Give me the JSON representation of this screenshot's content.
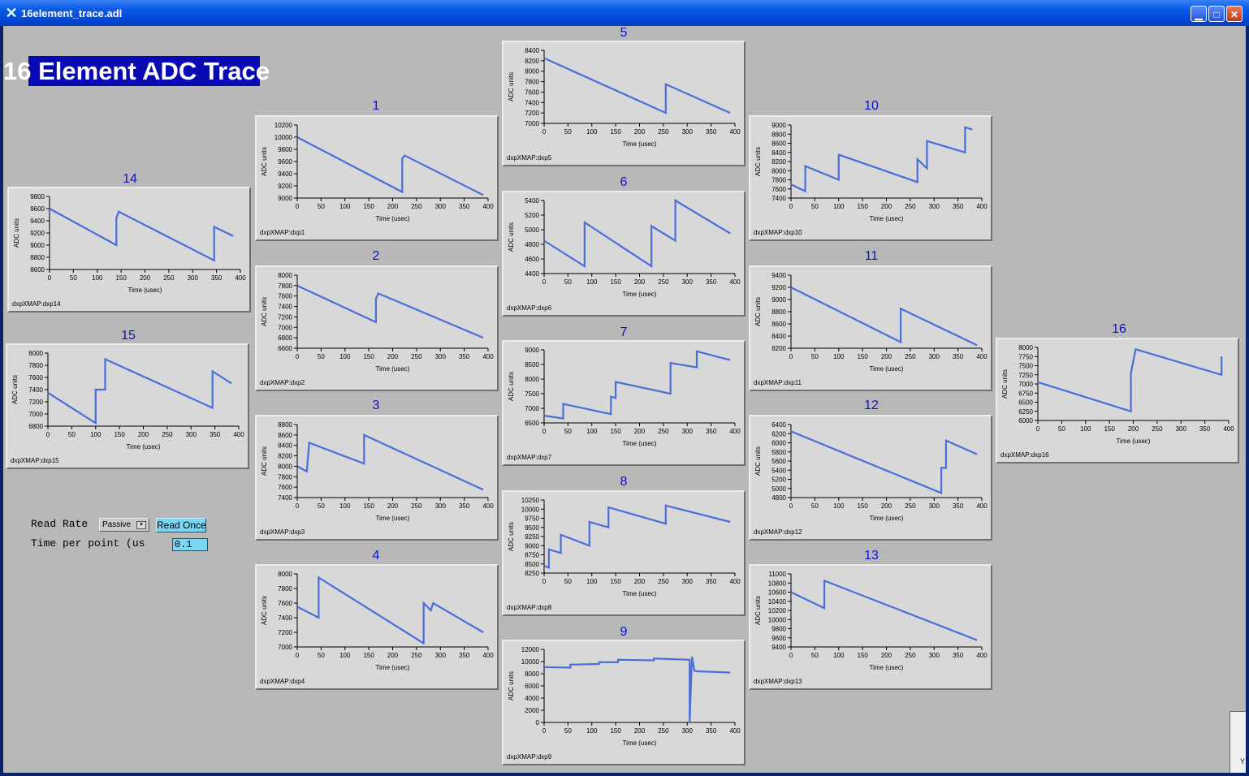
{
  "window": {
    "title": "16element_trace.adl"
  },
  "main_title": "16 Element ADC Trace",
  "controls": {
    "read_rate_label": "Read Rate",
    "read_rate_value": "Passive",
    "read_once_label": "Read Once",
    "time_per_point_label": "Time per point (us",
    "time_per_point_value": "0.1"
  },
  "edge_widget_text": "Y",
  "axis": {
    "xlabel": "Time (usec)",
    "ylabel": "ADC units"
  },
  "colors": {
    "trace": "#4a6ed8",
    "title": "#0a14c8",
    "client_bg": "#b8b8b8",
    "panel_bg": "#d8d8d8"
  },
  "chart_data": [
    {
      "title": "1",
      "label": "dxpXMAP:dxp1",
      "type": "line",
      "xlim": [
        0,
        400
      ],
      "xticks": [
        0,
        50,
        100,
        150,
        200,
        250,
        300,
        350,
        400
      ],
      "yticks": [
        9000,
        9200,
        9400,
        9600,
        9800,
        10000,
        10200
      ],
      "ylim": [
        9000,
        10200
      ],
      "series": [
        {
          "x": [
            0,
            220,
            220,
            225,
            390
          ],
          "y": [
            10000,
            9100,
            9650,
            9700,
            9050
          ]
        }
      ]
    },
    {
      "title": "2",
      "label": "dxpXMAP:dxp2",
      "type": "line",
      "xlim": [
        0,
        400
      ],
      "xticks": [
        0,
        50,
        100,
        150,
        200,
        250,
        300,
        350,
        400
      ],
      "yticks": [
        6600,
        6800,
        7000,
        7200,
        7400,
        7600,
        7800,
        8000
      ],
      "ylim": [
        6600,
        8000
      ],
      "series": [
        {
          "x": [
            0,
            165,
            165,
            170,
            390
          ],
          "y": [
            7800,
            7100,
            7550,
            7650,
            6800
          ]
        }
      ]
    },
    {
      "title": "3",
      "label": "dxpXMAP:dxp3",
      "type": "line",
      "xlim": [
        0,
        400
      ],
      "xticks": [
        0,
        50,
        100,
        150,
        200,
        250,
        300,
        350,
        400
      ],
      "yticks": [
        7400,
        7600,
        7800,
        8000,
        8200,
        8400,
        8600,
        8800
      ],
      "ylim": [
        7400,
        8800
      ],
      "series": [
        {
          "x": [
            0,
            20,
            25,
            140,
            140,
            390
          ],
          "y": [
            8000,
            7900,
            8450,
            8050,
            8600,
            7550
          ]
        }
      ]
    },
    {
      "title": "4",
      "label": "dxpXMAP:dxp4",
      "type": "line",
      "xlim": [
        0,
        400
      ],
      "xticks": [
        0,
        50,
        100,
        150,
        200,
        250,
        300,
        350,
        400
      ],
      "yticks": [
        7000,
        7200,
        7400,
        7600,
        7800,
        8000
      ],
      "ylim": [
        7000,
        8000
      ],
      "series": [
        {
          "x": [
            0,
            45,
            45,
            265,
            265,
            280,
            285,
            390
          ],
          "y": [
            7550,
            7400,
            7950,
            7050,
            7600,
            7500,
            7600,
            7200
          ]
        }
      ]
    },
    {
      "title": "5",
      "label": "dxpXMAP:dxp5",
      "type": "line",
      "xlim": [
        0,
        400
      ],
      "xticks": [
        0,
        50,
        100,
        150,
        200,
        250,
        300,
        350,
        400
      ],
      "yticks": [
        7000,
        7200,
        7400,
        7600,
        7800,
        8000,
        8200,
        8400
      ],
      "ylim": [
        7000,
        8400
      ],
      "series": [
        {
          "x": [
            0,
            255,
            255,
            390
          ],
          "y": [
            8250,
            7200,
            7750,
            7200
          ]
        }
      ]
    },
    {
      "title": "6",
      "label": "dxpXMAP:dxp6",
      "type": "line",
      "xlim": [
        0,
        400
      ],
      "xticks": [
        0,
        50,
        100,
        150,
        200,
        250,
        300,
        350,
        400
      ],
      "yticks": [
        4400,
        4600,
        4800,
        5000,
        5200,
        5400
      ],
      "ylim": [
        4400,
        5400
      ],
      "series": [
        {
          "x": [
            0,
            85,
            85,
            225,
            225,
            275,
            275,
            390
          ],
          "y": [
            4850,
            4500,
            5100,
            4500,
            5050,
            4850,
            5400,
            4950
          ]
        }
      ]
    },
    {
      "title": "7",
      "label": "dxpXMAP:dxp7",
      "type": "line",
      "xlim": [
        0,
        400
      ],
      "xticks": [
        0,
        50,
        100,
        150,
        200,
        250,
        300,
        350,
        400
      ],
      "yticks": [
        6500,
        7000,
        7500,
        8000,
        8500,
        9000
      ],
      "ylim": [
        6500,
        9000
      ],
      "series": [
        {
          "x": [
            0,
            40,
            40,
            140,
            140,
            150,
            150,
            265,
            265,
            320,
            320,
            390
          ],
          "y": [
            6750,
            6650,
            7150,
            6800,
            7400,
            7350,
            7900,
            7500,
            8550,
            8400,
            8950,
            8650
          ]
        }
      ]
    },
    {
      "title": "8",
      "label": "dxpXMAP:dxp8",
      "type": "line",
      "xlim": [
        0,
        400
      ],
      "xticks": [
        0,
        50,
        100,
        150,
        200,
        250,
        300,
        350,
        400
      ],
      "yticks": [
        8250,
        8500,
        8750,
        9000,
        9250,
        9500,
        9750,
        10000,
        10250
      ],
      "ylim": [
        8250,
        10250
      ],
      "series": [
        {
          "x": [
            0,
            10,
            10,
            35,
            35,
            95,
            95,
            135,
            135,
            255,
            255,
            390
          ],
          "y": [
            8450,
            8400,
            8900,
            8800,
            9300,
            9000,
            9650,
            9500,
            10050,
            9600,
            10100,
            9650
          ]
        }
      ]
    },
    {
      "title": "9",
      "label": "dxpXMAP:dxp9",
      "type": "line",
      "xlim": [
        0,
        400
      ],
      "xticks": [
        0,
        50,
        100,
        150,
        200,
        250,
        300,
        350,
        400
      ],
      "yticks": [
        0,
        2000,
        4000,
        6000,
        8000,
        10000,
        12000
      ],
      "ylim": [
        0,
        12000
      ],
      "series": [
        {
          "x": [
            0,
            55,
            55,
            115,
            115,
            155,
            155,
            230,
            230,
            305,
            305,
            310,
            315,
            320,
            390
          ],
          "y": [
            9100,
            9000,
            9500,
            9600,
            9900,
            9900,
            10300,
            10200,
            10500,
            10300,
            0,
            10800,
            8500,
            8400,
            8200
          ]
        }
      ]
    },
    {
      "title": "10",
      "label": "dxpXMAP:dxp10",
      "type": "line",
      "xlim": [
        0,
        400
      ],
      "xticks": [
        0,
        50,
        100,
        150,
        200,
        250,
        300,
        350,
        400
      ],
      "yticks": [
        7400,
        7600,
        7800,
        8000,
        8200,
        8400,
        8600,
        8800,
        9000
      ],
      "ylim": [
        7400,
        9000
      ],
      "series": [
        {
          "x": [
            0,
            30,
            30,
            100,
            100,
            265,
            265,
            285,
            285,
            365,
            365,
            380
          ],
          "y": [
            7700,
            7550,
            8100,
            7800,
            8350,
            7750,
            8250,
            8050,
            8650,
            8400,
            8950,
            8900
          ]
        }
      ]
    },
    {
      "title": "11",
      "label": "dxpXMAP:dxp11",
      "type": "line",
      "xlim": [
        0,
        400
      ],
      "xticks": [
        0,
        50,
        100,
        150,
        200,
        250,
        300,
        350,
        400
      ],
      "yticks": [
        8200,
        8400,
        8600,
        8800,
        9000,
        9200,
        9400
      ],
      "ylim": [
        8200,
        9400
      ],
      "series": [
        {
          "x": [
            0,
            230,
            230,
            390
          ],
          "y": [
            9200,
            8300,
            8850,
            8250
          ]
        }
      ]
    },
    {
      "title": "12",
      "label": "dxpXMAP:dxp12",
      "type": "line",
      "xlim": [
        0,
        400
      ],
      "xticks": [
        0,
        50,
        100,
        150,
        200,
        250,
        300,
        350,
        400
      ],
      "yticks": [
        4800,
        5000,
        5200,
        5400,
        5600,
        5800,
        6000,
        6200,
        6400
      ],
      "ylim": [
        4800,
        6400
      ],
      "series": [
        {
          "x": [
            0,
            315,
            315,
            325,
            325,
            390
          ],
          "y": [
            6250,
            4900,
            5450,
            5450,
            6050,
            5750
          ]
        }
      ]
    },
    {
      "title": "13",
      "label": "dxpXMAP:dxp13",
      "type": "line",
      "xlim": [
        0,
        400
      ],
      "xticks": [
        0,
        50,
        100,
        150,
        200,
        250,
        300,
        350,
        400
      ],
      "yticks": [
        9400,
        9600,
        9800,
        10000,
        10200,
        10400,
        10600,
        10800,
        11000
      ],
      "ylim": [
        9400,
        11000
      ],
      "series": [
        {
          "x": [
            0,
            70,
            70,
            390
          ],
          "y": [
            10600,
            10250,
            10850,
            9550
          ]
        }
      ]
    },
    {
      "title": "14",
      "label": "dxpXMAP:dxp14",
      "type": "line",
      "xlim": [
        0,
        400
      ],
      "xticks": [
        0,
        50,
        100,
        150,
        200,
        250,
        300,
        350,
        400
      ],
      "yticks": [
        8600,
        8800,
        9000,
        9200,
        9400,
        9600,
        9800
      ],
      "ylim": [
        8600,
        9800
      ],
      "series": [
        {
          "x": [
            0,
            140,
            140,
            145,
            345,
            345,
            385
          ],
          "y": [
            9600,
            9000,
            9450,
            9550,
            8750,
            9300,
            9150
          ]
        }
      ]
    },
    {
      "title": "15",
      "label": "dxpXMAP:dxp15",
      "type": "line",
      "xlim": [
        0,
        400
      ],
      "xticks": [
        0,
        50,
        100,
        150,
        200,
        250,
        300,
        350,
        400
      ],
      "yticks": [
        6800,
        7000,
        7200,
        7400,
        7600,
        7800,
        8000
      ],
      "ylim": [
        6800,
        8000
      ],
      "series": [
        {
          "x": [
            0,
            100,
            100,
            120,
            120,
            345,
            345,
            385
          ],
          "y": [
            7350,
            6850,
            7400,
            7400,
            7900,
            7100,
            7700,
            7500
          ]
        }
      ]
    },
    {
      "title": "16",
      "label": "dxpXMAP:dxp16",
      "type": "line",
      "xlim": [
        0,
        400
      ],
      "xticks": [
        0,
        50,
        100,
        150,
        200,
        250,
        300,
        350,
        400
      ],
      "yticks": [
        6000,
        6250,
        6500,
        6750,
        7000,
        7250,
        7500,
        7750,
        8000
      ],
      "ylim": [
        6000,
        8000
      ],
      "series": [
        {
          "x": [
            0,
            195,
            195,
            205,
            385,
            385
          ],
          "y": [
            7050,
            6250,
            7300,
            7950,
            7250,
            7750
          ]
        }
      ]
    }
  ]
}
